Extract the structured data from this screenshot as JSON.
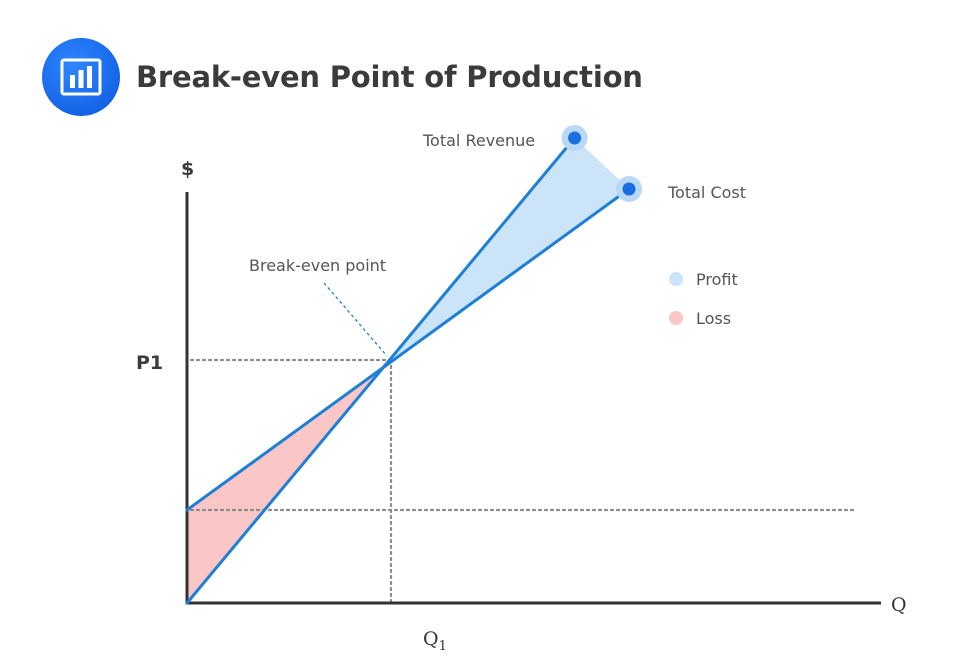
{
  "title": "Break-even Point of Production",
  "logo_icon": "bar-chart-icon",
  "colors": {
    "line": "#1e7fd6",
    "profit_fill": "#cce4f7",
    "loss_fill": "#fbc6c6",
    "marker": "#1a6fe0",
    "marker_halo": "#b9d8f5",
    "guide": "#8a8a8a",
    "axis": "#333333"
  },
  "chart_data": {
    "type": "line",
    "title": "Break-even Point of Production",
    "xlabel": "Q",
    "ylabel": "$",
    "xlim": [
      0,
      1
    ],
    "ylim": [
      0,
      1
    ],
    "grid": false,
    "series": [
      {
        "name": "Total Revenue",
        "x": [
          0,
          0.57
        ],
        "y": [
          0,
          1.55
        ]
      },
      {
        "name": "Total Cost",
        "x": [
          0,
          0.65
        ],
        "y": [
          0.31,
          1.38
        ]
      }
    ],
    "break_even": {
      "x": 0.3,
      "y": 0.81,
      "label": "Break-even point"
    },
    "fixed_cost_level": 0.31,
    "tick_labels": {
      "y": "P1",
      "x_main": "Q",
      "x_sub": "1"
    },
    "legend": [
      {
        "name": "Profit",
        "color": "#cce4f7"
      },
      {
        "name": "Loss",
        "color": "#fbc6c6"
      }
    ]
  }
}
